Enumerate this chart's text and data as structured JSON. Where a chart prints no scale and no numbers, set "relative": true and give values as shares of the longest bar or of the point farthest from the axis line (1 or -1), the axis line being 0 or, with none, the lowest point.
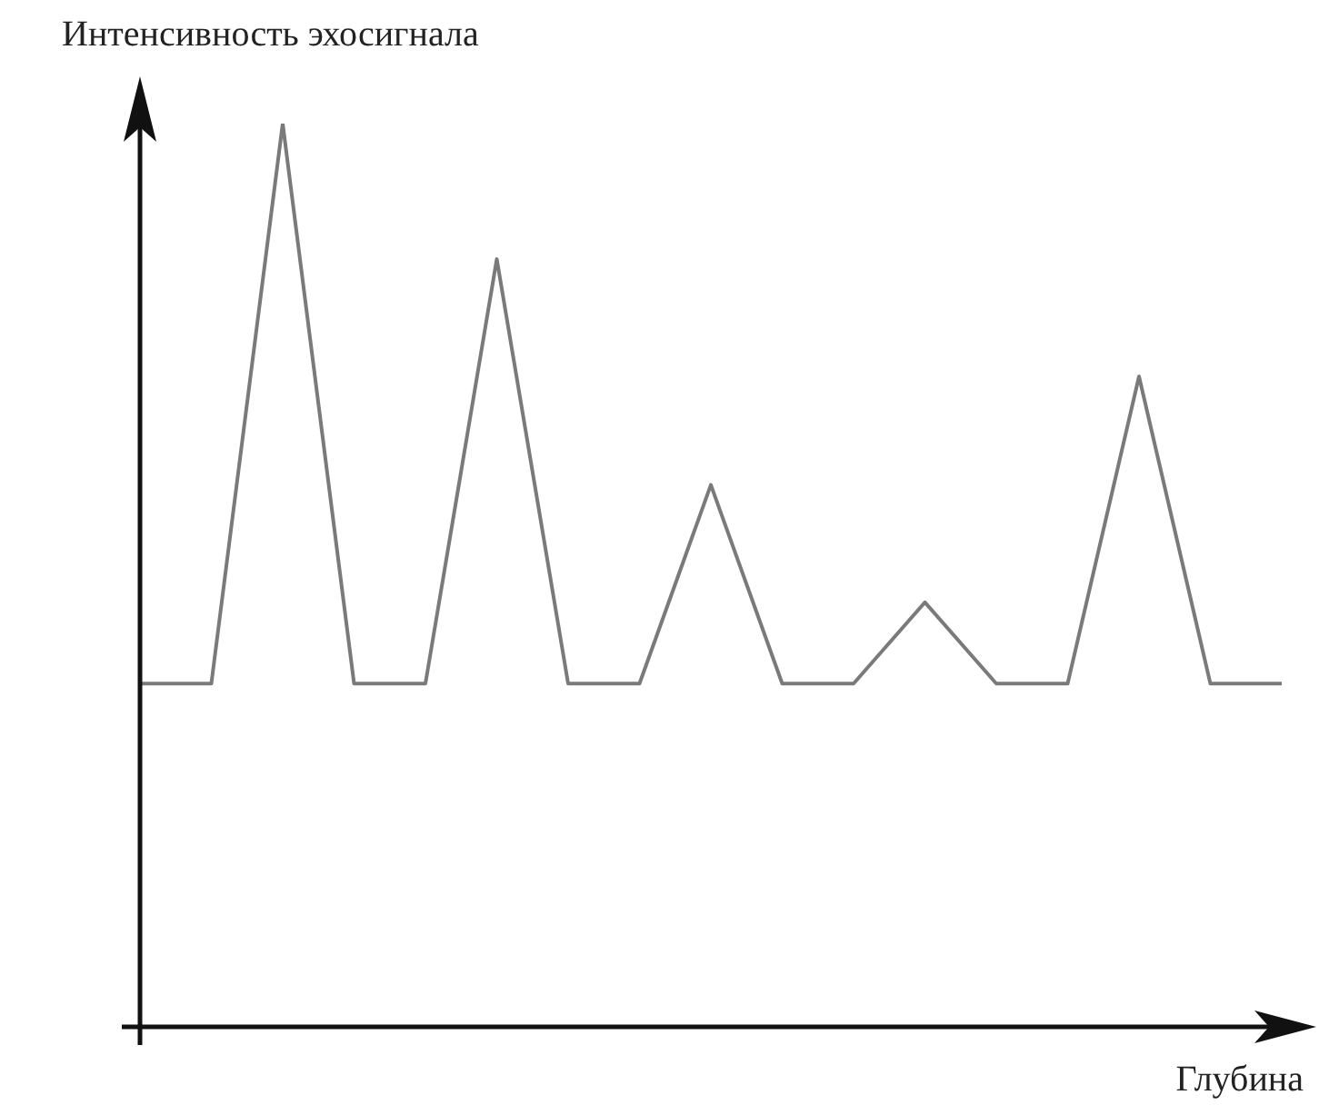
{
  "chart_data": {
    "type": "line",
    "relative": true,
    "ylabel": "Интенсивность эхосигнала",
    "xlabel": "Глубина",
    "categories": [
      null,
      null,
      null,
      null,
      null,
      null,
      null,
      null,
      null,
      null,
      null,
      null,
      null,
      null,
      null,
      null,
      null
    ],
    "series": [
      {
        "color": "#7a7a7a",
        "values": [
          0.38,
          0.38,
          1,
          0.38,
          0.38,
          0.85,
          0.38,
          0.38,
          0.6,
          0.38,
          0.38,
          0.47,
          0.38,
          0.38,
          0.72,
          0.38,
          0.38
        ]
      }
    ],
    "legend": false,
    "marker": "none",
    "line_style": "solid"
  }
}
